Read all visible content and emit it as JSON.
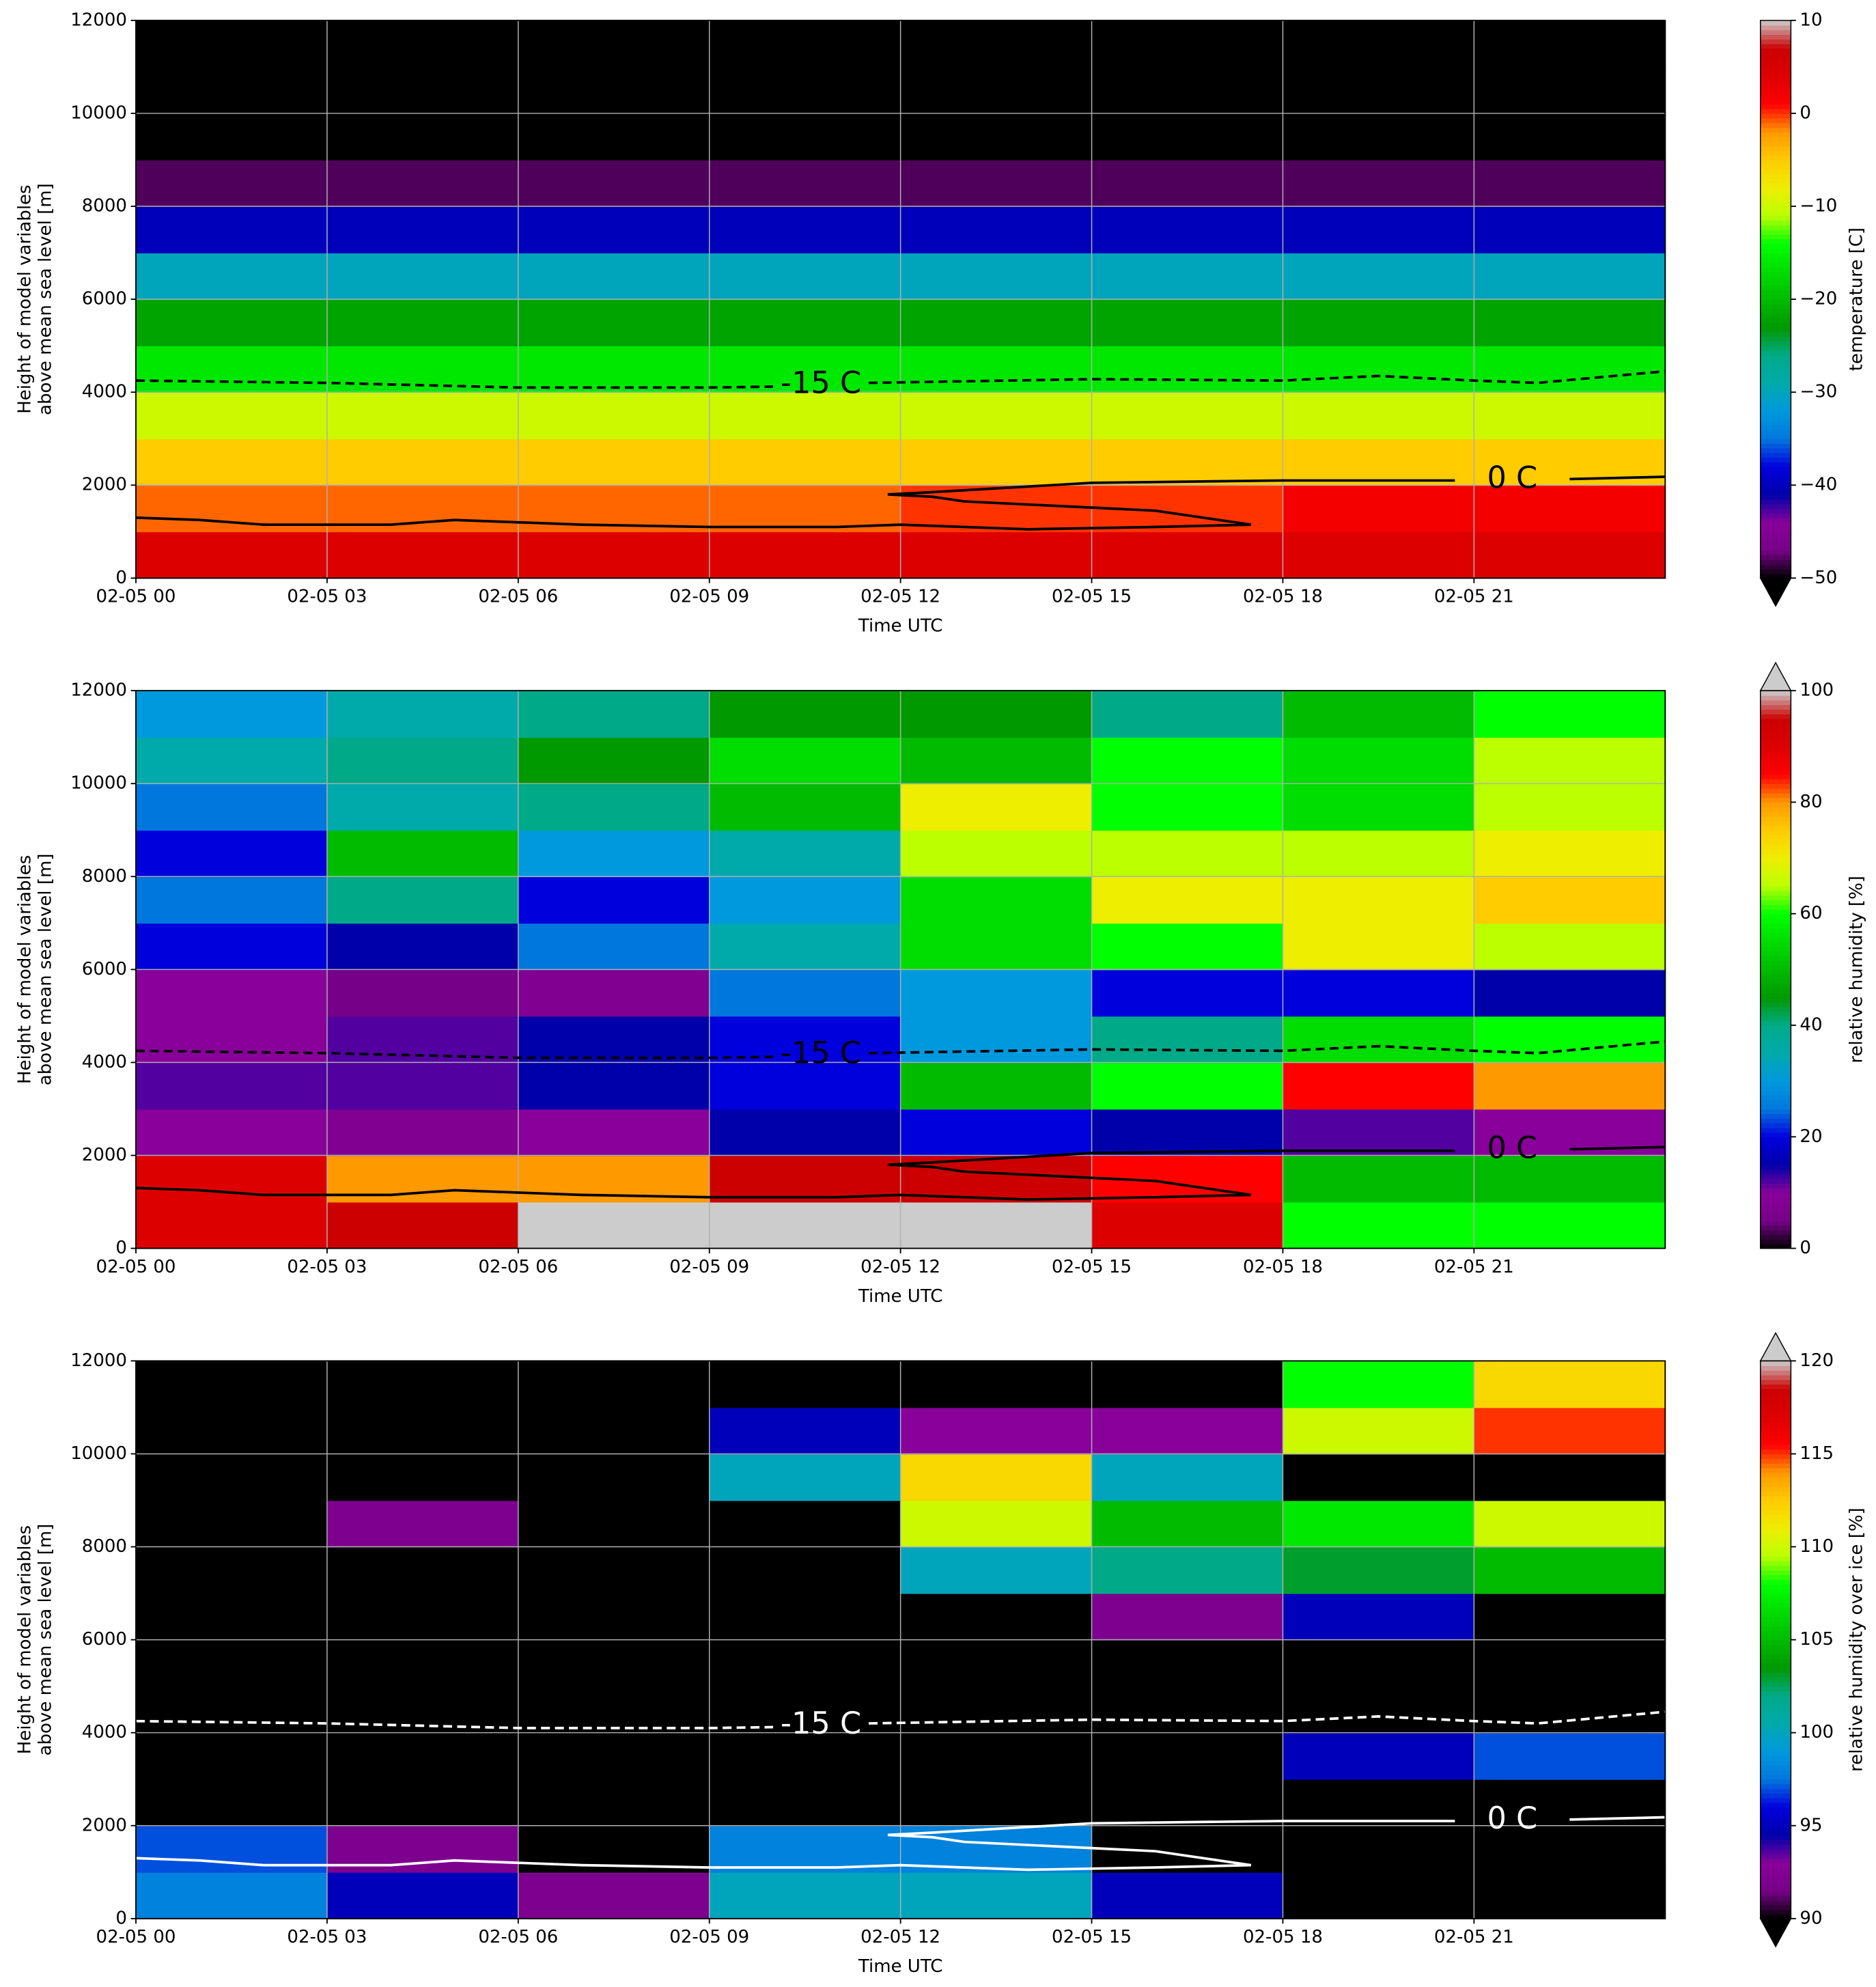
{
  "chart_data": [
    {
      "type": "heatmap",
      "xlabel": "Time UTC",
      "ylabel": [
        "Height of model variables",
        "above mean sea level [m]"
      ],
      "xlim": [
        0,
        24
      ],
      "ylim": [
        0,
        12000
      ],
      "xticks": [
        {
          "value": 0,
          "label": "02-05 00"
        },
        {
          "value": 3,
          "label": "02-05 03"
        },
        {
          "value": 6,
          "label": "02-05 06"
        },
        {
          "value": 9,
          "label": "02-05 09"
        },
        {
          "value": 12,
          "label": "02-05 12"
        },
        {
          "value": 15,
          "label": "02-05 15"
        },
        {
          "value": 18,
          "label": "02-05 18"
        },
        {
          "value": 21,
          "label": "02-05 21"
        }
      ],
      "yticks": [
        0,
        2000,
        4000,
        6000,
        8000,
        10000,
        12000
      ],
      "grid": true,
      "x_edges": [
        0,
        3,
        6,
        9,
        12,
        15,
        18,
        21,
        24
      ],
      "y_edges": [
        0,
        1000,
        2000,
        3000,
        4000,
        5000,
        6000,
        7000,
        8000,
        9000,
        10000,
        11000,
        12000
      ],
      "z": [
        [
          4,
          4,
          4,
          4,
          4,
          4,
          4,
          4
        ],
        [
          -1,
          -1,
          -1,
          -1,
          0,
          0,
          2,
          2
        ],
        [
          -5,
          -5,
          -5,
          -5,
          -5,
          -5,
          -5,
          -5
        ],
        [
          -10,
          -10,
          -10,
          -10,
          -10,
          -10,
          -10,
          -10
        ],
        [
          -16,
          -16,
          -16,
          -16,
          -16,
          -16,
          -16,
          -16
        ],
        [
          -22,
          -22,
          -22,
          -22,
          -22,
          -22,
          -22,
          -22
        ],
        [
          -30,
          -30,
          -30,
          -30,
          -30,
          -30,
          -30,
          -30
        ],
        [
          -40,
          -40,
          -40,
          -40,
          -40,
          -40,
          -40,
          -40
        ],
        [
          -48,
          -48,
          -48,
          -48,
          -48,
          -48,
          -48,
          -48
        ],
        [
          -55,
          -55,
          -55,
          -55,
          -55,
          -55,
          -55,
          -55
        ],
        [
          -58,
          -58,
          -58,
          -58,
          -58,
          -58,
          -58,
          -58
        ],
        [
          -60,
          -60,
          -60,
          -60,
          -60,
          -60,
          -60,
          -60
        ]
      ],
      "colorbar": {
        "label": "temperature [C]",
        "clim": [
          -50,
          10
        ],
        "extend": "min",
        "ticks": [
          {
            "value": -50,
            "label": "−50"
          },
          {
            "value": -40,
            "label": "−40"
          },
          {
            "value": -30,
            "label": "−30"
          },
          {
            "value": -20,
            "label": "−20"
          },
          {
            "value": -10,
            "label": "−10"
          },
          0,
          10
        ]
      },
      "contour_color": "#000000",
      "contours": [
        {
          "label": "-15 C",
          "style": "dashed",
          "x": [
            0,
            3,
            6,
            9,
            10,
            null,
            11.5,
            15,
            18,
            19.5,
            21,
            22,
            24
          ],
          "y": [
            4250,
            4200,
            4100,
            4100,
            4120,
            null,
            4200,
            4280,
            4250,
            4350,
            4250,
            4200,
            4450
          ]
        },
        {
          "label": "0 C",
          "style": "solid",
          "x": [
            0,
            1,
            2,
            4,
            5,
            7,
            9,
            11,
            12,
            14,
            16,
            17.5,
            16,
            13,
            12.5,
            11.8,
            12.5,
            15,
            18,
            20.7,
            null,
            22.5,
            24
          ],
          "y": [
            1300,
            1250,
            1150,
            1150,
            1250,
            1150,
            1100,
            1100,
            1150,
            1050,
            1100,
            1150,
            1450,
            1650,
            1750,
            1800,
            1850,
            2050,
            2100,
            2100,
            null,
            2130,
            2180
          ]
        }
      ]
    },
    {
      "type": "heatmap",
      "xlabel": "Time UTC",
      "ylabel": [
        "Height of model variables",
        "above mean sea level [m]"
      ],
      "xlim": [
        0,
        24
      ],
      "ylim": [
        0,
        12000
      ],
      "xticks": [
        {
          "value": 0,
          "label": "02-05 00"
        },
        {
          "value": 3,
          "label": "02-05 03"
        },
        {
          "value": 6,
          "label": "02-05 06"
        },
        {
          "value": 9,
          "label": "02-05 09"
        },
        {
          "value": 12,
          "label": "02-05 12"
        },
        {
          "value": 15,
          "label": "02-05 15"
        },
        {
          "value": 18,
          "label": "02-05 18"
        },
        {
          "value": 21,
          "label": "02-05 21"
        }
      ],
      "yticks": [
        0,
        2000,
        4000,
        6000,
        8000,
        10000,
        12000
      ],
      "grid": true,
      "x_edges": [
        0,
        3,
        6,
        9,
        12,
        15,
        18,
        21,
        24
      ],
      "y_edges": [
        0,
        1000,
        2000,
        3000,
        4000,
        5000,
        6000,
        7000,
        8000,
        9000,
        10000,
        11000,
        12000
      ],
      "z": [
        [
          90,
          95,
          100,
          100,
          100,
          90,
          60,
          60
        ],
        [
          90,
          80,
          80,
          95,
          95,
          85,
          50,
          50
        ],
        [
          10,
          8,
          10,
          15,
          20,
          15,
          12,
          10
        ],
        [
          12,
          12,
          15,
          20,
          50,
          60,
          85,
          80
        ],
        [
          10,
          12,
          15,
          20,
          30,
          40,
          55,
          60
        ],
        [
          10,
          5,
          8,
          25,
          30,
          20,
          20,
          15
        ],
        [
          20,
          15,
          25,
          35,
          55,
          60,
          70,
          65
        ],
        [
          25,
          40,
          20,
          30,
          55,
          70,
          70,
          75
        ],
        [
          20,
          50,
          30,
          35,
          65,
          65,
          65,
          70
        ],
        [
          25,
          35,
          40,
          50,
          70,
          60,
          55,
          65
        ],
        [
          35,
          40,
          45,
          55,
          50,
          60,
          55,
          65
        ],
        [
          30,
          35,
          40,
          45,
          45,
          40,
          50,
          60
        ]
      ],
      "colorbar": {
        "label": "relative humidity [%]",
        "clim": [
          0,
          100
        ],
        "extend": "max",
        "ticks": [
          0,
          20,
          40,
          60,
          80,
          100
        ]
      },
      "contour_color": "#000000",
      "contours": [
        {
          "label": "-15 C",
          "style": "dashed",
          "x": [
            0,
            3,
            6,
            9,
            10,
            null,
            11.5,
            15,
            18,
            19.5,
            21,
            22,
            24
          ],
          "y": [
            4250,
            4200,
            4100,
            4100,
            4120,
            null,
            4200,
            4280,
            4250,
            4350,
            4250,
            4200,
            4450
          ]
        },
        {
          "label": "0 C",
          "style": "solid",
          "x": [
            0,
            1,
            2,
            4,
            5,
            7,
            9,
            11,
            12,
            14,
            16,
            17.5,
            16,
            13,
            12.5,
            11.8,
            12.5,
            15,
            18,
            20.7,
            null,
            22.5,
            24
          ],
          "y": [
            1300,
            1250,
            1150,
            1150,
            1250,
            1150,
            1100,
            1100,
            1150,
            1050,
            1100,
            1150,
            1450,
            1650,
            1750,
            1800,
            1850,
            2050,
            2100,
            2100,
            null,
            2130,
            2180
          ]
        }
      ]
    },
    {
      "type": "heatmap",
      "xlabel": "Time UTC",
      "ylabel": [
        "Height of model variables",
        "above mean sea level [m]"
      ],
      "xlim": [
        0,
        24
      ],
      "ylim": [
        0,
        12000
      ],
      "xticks": [
        {
          "value": 0,
          "label": "02-05 00"
        },
        {
          "value": 3,
          "label": "02-05 03"
        },
        {
          "value": 6,
          "label": "02-05 06"
        },
        {
          "value": 9,
          "label": "02-05 09"
        },
        {
          "value": 12,
          "label": "02-05 12"
        },
        {
          "value": 15,
          "label": "02-05 15"
        },
        {
          "value": 18,
          "label": "02-05 18"
        },
        {
          "value": 21,
          "label": "02-05 21"
        }
      ],
      "yticks": [
        0,
        2000,
        4000,
        6000,
        8000,
        10000,
        12000
      ],
      "grid": true,
      "x_edges": [
        0,
        3,
        6,
        9,
        12,
        15,
        18,
        21,
        24
      ],
      "y_edges": [
        0,
        1000,
        2000,
        3000,
        4000,
        5000,
        6000,
        7000,
        8000,
        9000,
        10000,
        11000,
        12000
      ],
      "z": [
        [
          98,
          95,
          92,
          100,
          100,
          95,
          80,
          80
        ],
        [
          97,
          92,
          80,
          98,
          98,
          80,
          80,
          80
        ],
        [
          80,
          80,
          80,
          80,
          80,
          80,
          80,
          80
        ],
        [
          80,
          80,
          80,
          80,
          80,
          80,
          95,
          97
        ],
        [
          80,
          80,
          80,
          80,
          80,
          80,
          80,
          80
        ],
        [
          80,
          80,
          80,
          80,
          80,
          80,
          80,
          80
        ],
        [
          80,
          80,
          80,
          80,
          80,
          92,
          95,
          90
        ],
        [
          80,
          80,
          80,
          80,
          100,
          102,
          103,
          105
        ],
        [
          80,
          92,
          80,
          90,
          110,
          105,
          107,
          110
        ],
        [
          80,
          80,
          80,
          100,
          112,
          100,
          90,
          80
        ],
        [
          80,
          80,
          80,
          95,
          93,
          93,
          110,
          115
        ],
        [
          80,
          80,
          80,
          80,
          80,
          90,
          108,
          112
        ]
      ],
      "colorbar": {
        "label": "relative humidity over ice [%]",
        "clim": [
          90,
          120
        ],
        "extend": "both",
        "ticks": [
          90,
          95,
          100,
          105,
          110,
          115,
          120
        ]
      },
      "contour_color": "#ffffff",
      "contours": [
        {
          "label": "-15 C",
          "style": "dashed",
          "x": [
            0,
            3,
            6,
            9,
            10,
            null,
            11.5,
            15,
            18,
            19.5,
            21,
            22,
            24
          ],
          "y": [
            4250,
            4200,
            4100,
            4100,
            4120,
            null,
            4200,
            4280,
            4250,
            4350,
            4250,
            4200,
            4450
          ]
        },
        {
          "label": "0 C",
          "style": "solid",
          "x": [
            0,
            1,
            2,
            4,
            5,
            7,
            9,
            11,
            12,
            14,
            16,
            17.5,
            16,
            13,
            12.5,
            11.8,
            12.5,
            15,
            18,
            20.7,
            null,
            22.5,
            24
          ],
          "y": [
            1300,
            1250,
            1150,
            1150,
            1250,
            1150,
            1100,
            1100,
            1150,
            1050,
            1100,
            1150,
            1450,
            1650,
            1750,
            1800,
            1850,
            2050,
            2100,
            2100,
            null,
            2130,
            2180
          ]
        }
      ]
    }
  ]
}
